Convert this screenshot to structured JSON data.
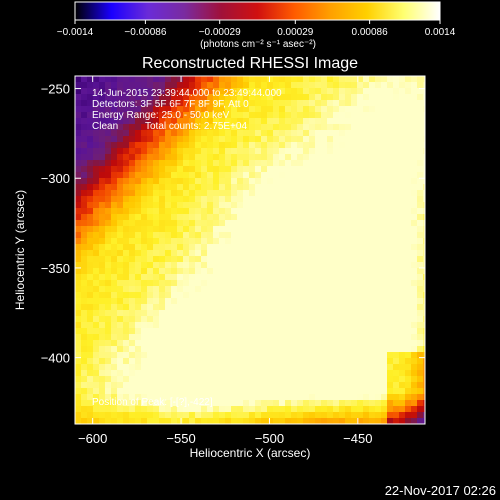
{
  "chart_data": {
    "type": "heatmap",
    "title": "Reconstructed RHESSI Image",
    "xlabel": "Heliocentric X (arcsec)",
    "ylabel": "Heliocentric Y (arcsec)",
    "xlim": [
      -610,
      -412
    ],
    "ylim": [
      -437,
      -243
    ],
    "x_ticks": [
      -600,
      -550,
      -500,
      -450
    ],
    "y_ticks": [
      -250,
      -300,
      -350,
      -400
    ],
    "x_tick_labels": [
      "−600",
      "−550",
      "−500",
      "−450"
    ],
    "y_tick_labels": [
      "−250",
      "−300",
      "−350",
      "−400"
    ],
    "colorbar": {
      "range": [
        -0.0014,
        0.0014
      ],
      "ticks": [
        -0.0014,
        -0.00086,
        -0.00029,
        0.00029,
        0.00086,
        0.0014
      ],
      "tick_labels": [
        "−0.0014",
        "−0.00086",
        "−0.00029",
        "0.00029",
        "0.00086",
        "0.0014"
      ],
      "units": "(photons cm⁻² s⁻¹ asec⁻²)",
      "colormap": [
        "#000000",
        "#1a00ff",
        "#6a2bd8",
        "#7a2ba0",
        "#a0103a",
        "#d01010",
        "#ff5a00",
        "#ffa000",
        "#ffd000",
        "#ffff70",
        "#ffffff"
      ]
    },
    "annotations": {
      "time": "14-Jun-2015 23:39:44.000 to 23:49:44.000",
      "detectors": "Detectors: 3F 5F 6F 7F 8F 9F, Att 0",
      "energy": "Energy Range: 25.0 - 50.0 keV",
      "method": "Clean",
      "counts": "Total counts: 2.75E+04",
      "peak": "Position of Peak: [-[?],-422]"
    },
    "image_features": {
      "dark_region": "upper-left corner (negative/low values, purple)",
      "bright_band": "diagonal from lower-left to upper-right, yellow-white",
      "edges": "red/dark-red along bottom-right"
    }
  },
  "footer": {
    "date": "22-Nov-2017 02:26"
  }
}
